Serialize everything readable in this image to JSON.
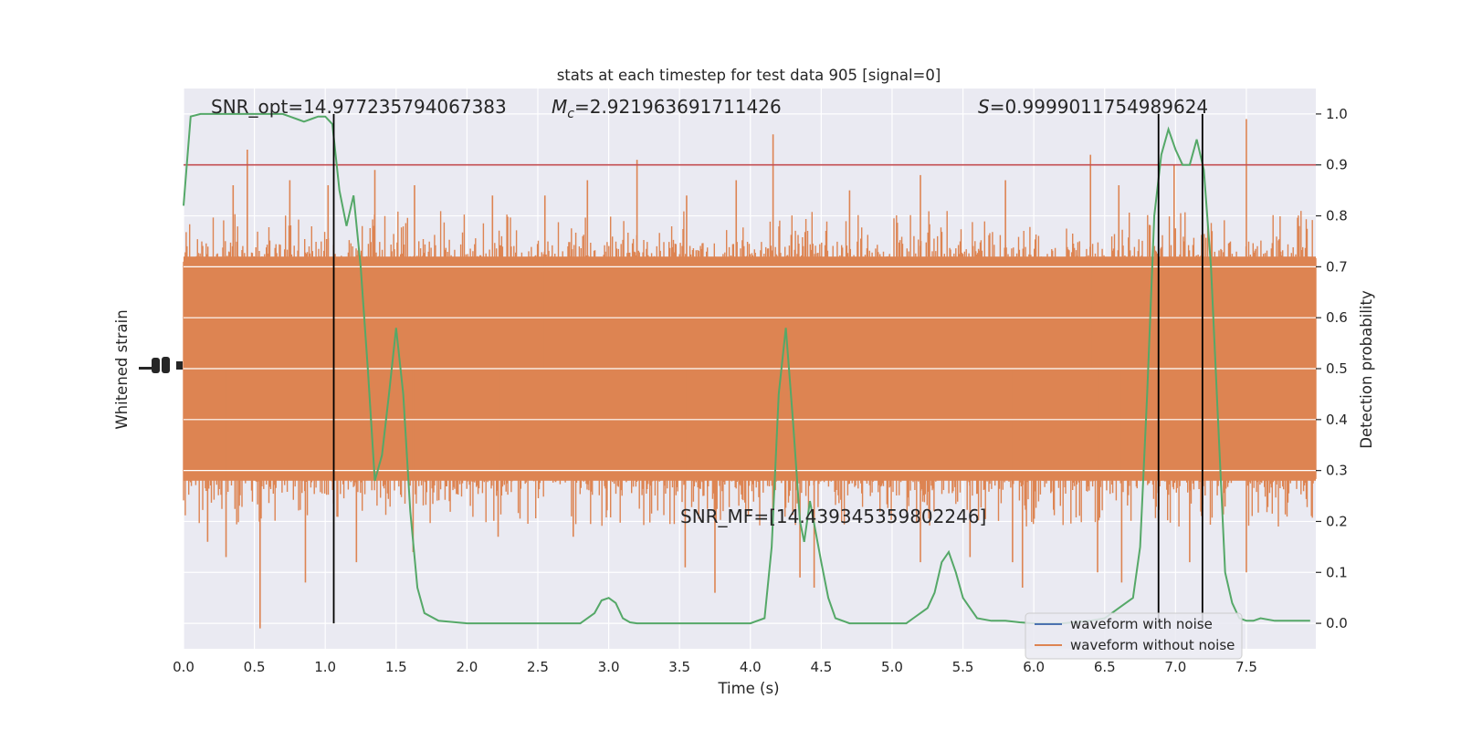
{
  "chart_data": {
    "type": "line",
    "title": "stats at each timestep for test data 905 [signal=0]",
    "xlabel": "Time (s)",
    "ylabel_left": "Whitened strain",
    "ylabel_right": "Detection probability",
    "xlim": [
      0,
      7.99
    ],
    "ylim_right": [
      -0.05,
      1.05
    ],
    "x_ticks": [
      0.0,
      0.5,
      1.0,
      1.5,
      2.0,
      2.5,
      3.0,
      3.5,
      4.0,
      4.5,
      5.0,
      5.5,
      6.0,
      6.5,
      7.0,
      7.5
    ],
    "x_tick_labels": [
      "0.0",
      "0.5",
      "1.0",
      "1.5",
      "2.0",
      "2.5",
      "3.0",
      "3.5",
      "4.0",
      "4.5",
      "5.0",
      "5.5",
      "6.0",
      "6.5",
      "7.0",
      "7.5"
    ],
    "y_right_ticks": [
      0.0,
      0.1,
      0.2,
      0.3,
      0.4,
      0.5,
      0.6,
      0.7,
      0.8,
      0.9,
      1.0
    ],
    "y_right_tick_labels": [
      "0.0",
      "0.1",
      "0.2",
      "0.3",
      "0.4",
      "0.5",
      "0.6",
      "0.7",
      "0.8",
      "0.9",
      "1.0"
    ],
    "grid": true,
    "legend_position": "lower-right",
    "legend": [
      {
        "label": "waveform with noise",
        "color": "#4c72b0"
      },
      {
        "label": "waveform without noise",
        "color": "#dd8452"
      }
    ],
    "annotations": {
      "snr_opt": "SNR_opt=14.977235794067383",
      "mc_prefix": "M",
      "mc_sub": "c",
      "mc_value": "=2.921963691711426",
      "s_prefix": "S",
      "s_value": "=0.9999011754989624",
      "snr_mf": "SNR_MF=[14.439345359802246]"
    },
    "threshold": {
      "y": 0.9,
      "color": "#c44e52"
    },
    "vertical_lines_x": [
      1.06,
      6.88,
      7.19
    ],
    "series": [
      {
        "label": "waveform without noise",
        "color": "#dd8452",
        "center": 0.5,
        "dense_band": [
          0.29,
          0.71
        ],
        "peaks_up": [
          [
            0.45,
            0.93
          ],
          [
            0.75,
            0.87
          ],
          [
            1.02,
            0.86
          ],
          [
            1.63,
            0.86
          ],
          [
            2.18,
            0.84
          ],
          [
            2.55,
            0.84
          ],
          [
            3.2,
            0.91
          ],
          [
            3.55,
            0.84
          ],
          [
            3.9,
            0.87
          ],
          [
            4.16,
            0.96
          ],
          [
            5.2,
            0.88
          ],
          [
            5.8,
            0.87
          ],
          [
            6.4,
            0.92
          ],
          [
            6.99,
            0.9
          ],
          [
            7.5,
            0.99
          ],
          [
            1.35,
            0.89
          ],
          [
            0.35,
            0.86
          ],
          [
            2.85,
            0.87
          ],
          [
            4.7,
            0.85
          ],
          [
            6.6,
            0.86
          ]
        ],
        "peaks_down": [
          [
            0.54,
            -0.01
          ],
          [
            0.3,
            0.13
          ],
          [
            0.86,
            0.08
          ],
          [
            1.22,
            0.12
          ],
          [
            1.62,
            0.14
          ],
          [
            2.22,
            0.17
          ],
          [
            3.54,
            0.11
          ],
          [
            3.75,
            0.06
          ],
          [
            4.45,
            0.07
          ],
          [
            5.2,
            0.12
          ],
          [
            5.92,
            0.07
          ],
          [
            6.45,
            0.1
          ],
          [
            6.62,
            0.08
          ],
          [
            7.1,
            0.12
          ],
          [
            7.5,
            0.1
          ],
          [
            0.17,
            0.16
          ],
          [
            2.75,
            0.17
          ],
          [
            4.35,
            0.09
          ],
          [
            5.55,
            0.13
          ],
          [
            5.85,
            0.12
          ]
        ]
      },
      {
        "label": "detection probability",
        "color": "#55a868",
        "x": [
          0.0,
          0.05,
          0.12,
          0.2,
          0.3,
          0.4,
          0.5,
          0.6,
          0.7,
          0.75,
          0.8,
          0.85,
          0.9,
          0.95,
          1.0,
          1.05,
          1.1,
          1.15,
          1.2,
          1.25,
          1.3,
          1.35,
          1.4,
          1.45,
          1.5,
          1.55,
          1.6,
          1.65,
          1.7,
          1.8,
          2.0,
          2.2,
          2.5,
          2.8,
          2.9,
          2.95,
          3.0,
          3.05,
          3.1,
          3.15,
          3.2,
          3.4,
          3.6,
          3.8,
          4.0,
          4.1,
          4.15,
          4.2,
          4.25,
          4.3,
          4.35,
          4.38,
          4.42,
          4.46,
          4.5,
          4.55,
          4.6,
          4.7,
          4.9,
          5.1,
          5.15,
          5.2,
          5.25,
          5.3,
          5.35,
          5.4,
          5.45,
          5.5,
          5.55,
          5.6,
          5.7,
          5.8,
          5.9,
          6.0,
          6.2,
          6.4,
          6.5,
          6.6,
          6.7,
          6.75,
          6.8,
          6.85,
          6.9,
          6.95,
          7.0,
          7.05,
          7.1,
          7.15,
          7.2,
          7.25,
          7.3,
          7.35,
          7.4,
          7.45,
          7.5,
          7.55,
          7.6,
          7.7,
          7.8,
          7.9,
          7.95
        ],
        "y": [
          0.82,
          0.995,
          1.0,
          1.0,
          1.0,
          1.0,
          1.0,
          1.0,
          1.0,
          0.995,
          0.99,
          0.985,
          0.99,
          0.995,
          0.995,
          0.98,
          0.85,
          0.78,
          0.84,
          0.7,
          0.5,
          0.28,
          0.33,
          0.45,
          0.58,
          0.45,
          0.22,
          0.07,
          0.02,
          0.005,
          0.0,
          0.0,
          0.0,
          0.0,
          0.02,
          0.045,
          0.05,
          0.04,
          0.01,
          0.002,
          0.0,
          0.0,
          0.0,
          0.0,
          0.0,
          0.01,
          0.15,
          0.45,
          0.58,
          0.4,
          0.2,
          0.16,
          0.24,
          0.18,
          0.12,
          0.05,
          0.01,
          0.0,
          0.0,
          0.0,
          0.01,
          0.02,
          0.03,
          0.06,
          0.12,
          0.14,
          0.1,
          0.05,
          0.03,
          0.01,
          0.005,
          0.005,
          0.002,
          0.0,
          0.0,
          0.005,
          0.01,
          0.03,
          0.05,
          0.15,
          0.45,
          0.8,
          0.92,
          0.97,
          0.93,
          0.9,
          0.9,
          0.95,
          0.89,
          0.7,
          0.4,
          0.1,
          0.04,
          0.01,
          0.005,
          0.005,
          0.01,
          0.005,
          0.005,
          0.005,
          0.005
        ]
      }
    ]
  }
}
